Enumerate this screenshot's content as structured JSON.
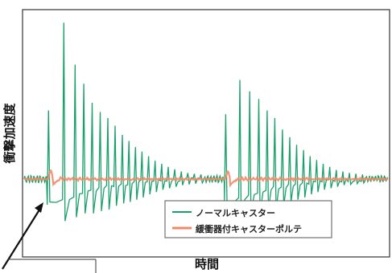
{
  "chart_data": {
    "type": "line",
    "title": "",
    "xlabel": "時間",
    "ylabel": "衝撃加速度",
    "grid": false,
    "legend_position": "bottom-right",
    "x_range": [
      0,
      100
    ],
    "y_range": [
      -1.0,
      2.2
    ],
    "series": [
      {
        "name": "ノーマルキャスター",
        "color": "#1aa06b",
        "bursts": [
          {
            "start": 6.7,
            "baseline_shift": -0.32,
            "peaks": [
              {
                "t": 6.7,
                "a": 0.9,
                "b": -0.3
              },
              {
                "t": 10.9,
                "a": 2.05,
                "b": -0.55
              },
              {
                "t": 14.0,
                "a": 1.5,
                "b": -0.5
              },
              {
                "t": 16.4,
                "a": 1.25,
                "b": -0.45
              },
              {
                "t": 18.7,
                "a": 1.0,
                "b": -0.45
              },
              {
                "t": 20.9,
                "a": 0.88,
                "b": -0.42
              },
              {
                "t": 23.0,
                "a": 0.8,
                "b": -0.4
              },
              {
                "t": 25.0,
                "a": 0.7,
                "b": -0.35
              },
              {
                "t": 27.0,
                "a": 0.58,
                "b": -0.32
              },
              {
                "t": 28.8,
                "a": 0.5,
                "b": -0.3
              },
              {
                "t": 30.6,
                "a": 0.42,
                "b": -0.27
              },
              {
                "t": 32.4,
                "a": 0.36,
                "b": -0.24
              },
              {
                "t": 34.2,
                "a": 0.3,
                "b": -0.2
              },
              {
                "t": 36.0,
                "a": 0.24,
                "b": -0.17
              },
              {
                "t": 37.8,
                "a": 0.2,
                "b": -0.14
              },
              {
                "t": 39.6,
                "a": 0.16,
                "b": -0.12
              },
              {
                "t": 41.4,
                "a": 0.13,
                "b": -0.1
              },
              {
                "t": 43.2,
                "a": 0.1,
                "b": -0.08
              },
              {
                "t": 45.0,
                "a": 0.08,
                "b": -0.07
              },
              {
                "t": 46.8,
                "a": 0.07,
                "b": -0.06
              },
              {
                "t": 48.6,
                "a": 0.06,
                "b": -0.05
              }
            ]
          },
          {
            "start": 55.4,
            "baseline_shift": -0.3,
            "peaks": [
              {
                "t": 55.4,
                "a": 0.85,
                "b": -0.3
              },
              {
                "t": 59.3,
                "a": 1.3,
                "b": -0.5
              },
              {
                "t": 62.0,
                "a": 1.15,
                "b": -0.45
              },
              {
                "t": 64.5,
                "a": 1.05,
                "b": -0.45
              },
              {
                "t": 66.8,
                "a": 0.9,
                "b": -0.42
              },
              {
                "t": 68.9,
                "a": 0.8,
                "b": -0.4
              },
              {
                "t": 71.0,
                "a": 0.65,
                "b": -0.35
              },
              {
                "t": 73.0,
                "a": 0.55,
                "b": -0.3
              },
              {
                "t": 74.9,
                "a": 0.45,
                "b": -0.27
              },
              {
                "t": 76.8,
                "a": 0.38,
                "b": -0.24
              },
              {
                "t": 78.6,
                "a": 0.3,
                "b": -0.2
              },
              {
                "t": 80.4,
                "a": 0.25,
                "b": -0.17
              },
              {
                "t": 82.2,
                "a": 0.2,
                "b": -0.14
              },
              {
                "t": 84.0,
                "a": 0.16,
                "b": -0.12
              },
              {
                "t": 85.8,
                "a": 0.12,
                "b": -0.1
              },
              {
                "t": 87.6,
                "a": 0.1,
                "b": -0.08
              },
              {
                "t": 89.4,
                "a": 0.08,
                "b": -0.07
              },
              {
                "t": 91.2,
                "a": 0.07,
                "b": -0.06
              },
              {
                "t": 93.0,
                "a": 0.06,
                "b": -0.05
              }
            ]
          }
        ]
      },
      {
        "name": "緩衝器付キャスターポルテ",
        "color": "#f08a6a",
        "bursts": [
          {
            "start": 6.7,
            "peak": 0.12,
            "trough": -0.08
          },
          {
            "start": 55.4,
            "peak": 0.1,
            "trough": -0.08
          }
        ]
      }
    ]
  }
}
